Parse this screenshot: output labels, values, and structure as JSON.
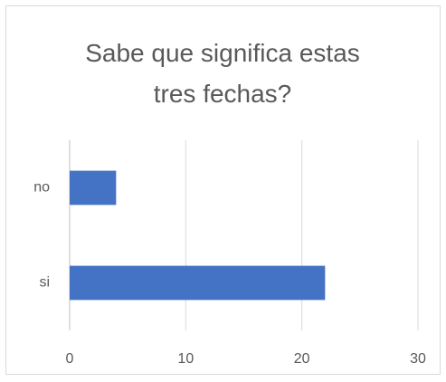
{
  "chart_data": {
    "type": "bar",
    "orientation": "horizontal",
    "title": "Sabe que significa estas tres fechas?",
    "categories": [
      "no",
      "si"
    ],
    "values": [
      4,
      22
    ],
    "color": "#4472c4",
    "xlim": [
      0,
      30
    ],
    "xticks": [
      0,
      10,
      20,
      30
    ],
    "grid": true
  }
}
